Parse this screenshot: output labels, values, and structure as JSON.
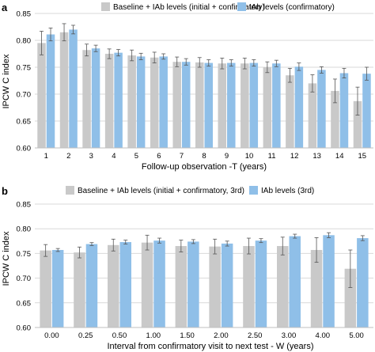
{
  "colors": {
    "baseline": "#c9c9c9",
    "iab": "#8fbfe8",
    "grid": "#d9d9d9",
    "error": "#555555"
  },
  "chart_data": [
    {
      "panel_label": "a",
      "type": "bar",
      "xlabel": "Follow-up observation -T (years)",
      "ylabel": "IPCW C index",
      "ylim": [
        0.6,
        0.85
      ],
      "yticks": [
        "0.60",
        "0.65",
        "0.70",
        "0.75",
        "0.80",
        "0.85"
      ],
      "grid": true,
      "legend_position": "top",
      "categories": [
        "1",
        "2",
        "3",
        "4",
        "5",
        "6",
        "7",
        "8",
        "9",
        "10",
        "11",
        "12",
        "13",
        "14",
        "15"
      ],
      "series": [
        {
          "name": "Baseline + IAb levels (initial + confirmatory)",
          "values": [
            0.795,
            0.815,
            0.782,
            0.775,
            0.772,
            0.768,
            0.76,
            0.759,
            0.757,
            0.757,
            0.75,
            0.735,
            0.72,
            0.706,
            0.687
          ],
          "err": [
            0.022,
            0.016,
            0.011,
            0.009,
            0.01,
            0.01,
            0.009,
            0.009,
            0.01,
            0.01,
            0.01,
            0.013,
            0.016,
            0.022,
            0.026
          ]
        },
        {
          "name": "IAb levels (confirmatory)",
          "values": [
            0.811,
            0.82,
            0.785,
            0.777,
            0.77,
            0.77,
            0.76,
            0.758,
            0.758,
            0.758,
            0.757,
            0.751,
            0.745,
            0.739,
            0.738
          ],
          "err": [
            0.012,
            0.008,
            0.006,
            0.006,
            0.006,
            0.005,
            0.006,
            0.006,
            0.006,
            0.006,
            0.006,
            0.007,
            0.006,
            0.009,
            0.012
          ]
        }
      ]
    },
    {
      "panel_label": "b",
      "type": "bar",
      "xlabel": "Interval from confirmatory visit to next test - W (years)",
      "ylabel": "IPCW C index",
      "ylim": [
        0.6,
        0.85
      ],
      "yticks": [
        "0.60",
        "0.65",
        "0.70",
        "0.75",
        "0.80",
        "0.85"
      ],
      "grid": true,
      "legend_position": "top",
      "categories": [
        "0.00",
        "0.25",
        "0.50",
        "1.00",
        "1.50",
        "2.00",
        "2.50",
        "3.00",
        "4.00",
        "5.00"
      ],
      "series": [
        {
          "name": "Baseline + IAb levels (initial + confirmatory, 3rd)",
          "values": [
            0.756,
            0.752,
            0.767,
            0.772,
            0.765,
            0.764,
            0.765,
            0.765,
            0.757,
            0.719
          ],
          "err": [
            0.012,
            0.011,
            0.012,
            0.015,
            0.012,
            0.015,
            0.016,
            0.018,
            0.025,
            0.038
          ]
        },
        {
          "name": "IAb levels (3rd)",
          "values": [
            0.757,
            0.769,
            0.773,
            0.776,
            0.774,
            0.77,
            0.776,
            0.785,
            0.787,
            0.781
          ],
          "err": [
            0.003,
            0.003,
            0.004,
            0.005,
            0.004,
            0.005,
            0.004,
            0.004,
            0.005,
            0.005
          ]
        }
      ]
    }
  ]
}
